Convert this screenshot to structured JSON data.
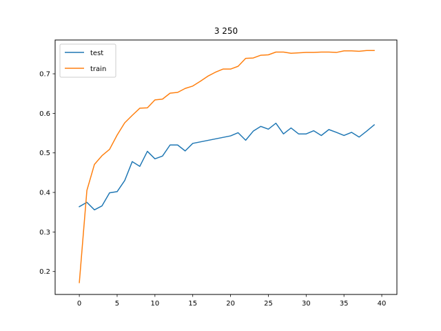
{
  "chart_data": {
    "type": "line",
    "title": "3 250",
    "xlabel": "",
    "ylabel": "",
    "xlim": [
      -3.2,
      42.0
    ],
    "ylim": [
      0.142,
      0.7855
    ],
    "xticks": [
      0,
      5,
      10,
      15,
      20,
      25,
      30,
      35,
      40
    ],
    "yticks": [
      0.2,
      0.3,
      0.4,
      0.5,
      0.6,
      0.7
    ],
    "grid": false,
    "legend_position": "upper-left",
    "series": [
      {
        "name": "test",
        "color": "#1f77b4",
        "x": [
          0,
          1,
          2,
          3,
          4,
          5,
          6,
          7,
          8,
          9,
          10,
          11,
          12,
          13,
          14,
          15,
          20,
          21,
          22,
          23,
          24,
          25,
          26,
          27,
          28,
          29,
          30,
          31,
          32,
          33,
          34,
          35,
          36,
          37,
          38,
          39
        ],
        "values": [
          0.364,
          0.375,
          0.356,
          0.366,
          0.399,
          0.402,
          0.43,
          0.478,
          0.466,
          0.504,
          0.485,
          0.492,
          0.52,
          0.52,
          0.505,
          0.524,
          0.543,
          0.551,
          0.532,
          0.555,
          0.567,
          0.56,
          0.575,
          0.548,
          0.563,
          0.548,
          0.548,
          0.556,
          0.544,
          0.559,
          0.552,
          0.544,
          0.552,
          0.54,
          0.555,
          0.571
        ]
      },
      {
        "name": "train",
        "color": "#ff7f0e",
        "x": [
          0,
          1,
          2,
          3,
          4,
          5,
          6,
          7,
          8,
          9,
          10,
          11,
          12,
          13,
          14,
          15,
          16,
          17,
          18,
          19,
          20,
          21,
          22,
          23,
          24,
          25,
          26,
          27,
          28,
          29,
          30,
          31,
          32,
          33,
          34,
          35,
          36,
          37,
          38,
          39
        ],
        "values": [
          0.172,
          0.405,
          0.471,
          0.493,
          0.509,
          0.545,
          0.576,
          0.595,
          0.613,
          0.614,
          0.634,
          0.636,
          0.651,
          0.653,
          0.663,
          0.669,
          0.681,
          0.694,
          0.704,
          0.712,
          0.712,
          0.719,
          0.739,
          0.74,
          0.747,
          0.748,
          0.755,
          0.755,
          0.752,
          0.753,
          0.754,
          0.754,
          0.755,
          0.755,
          0.754,
          0.758,
          0.758,
          0.757,
          0.759,
          0.759
        ]
      }
    ]
  }
}
